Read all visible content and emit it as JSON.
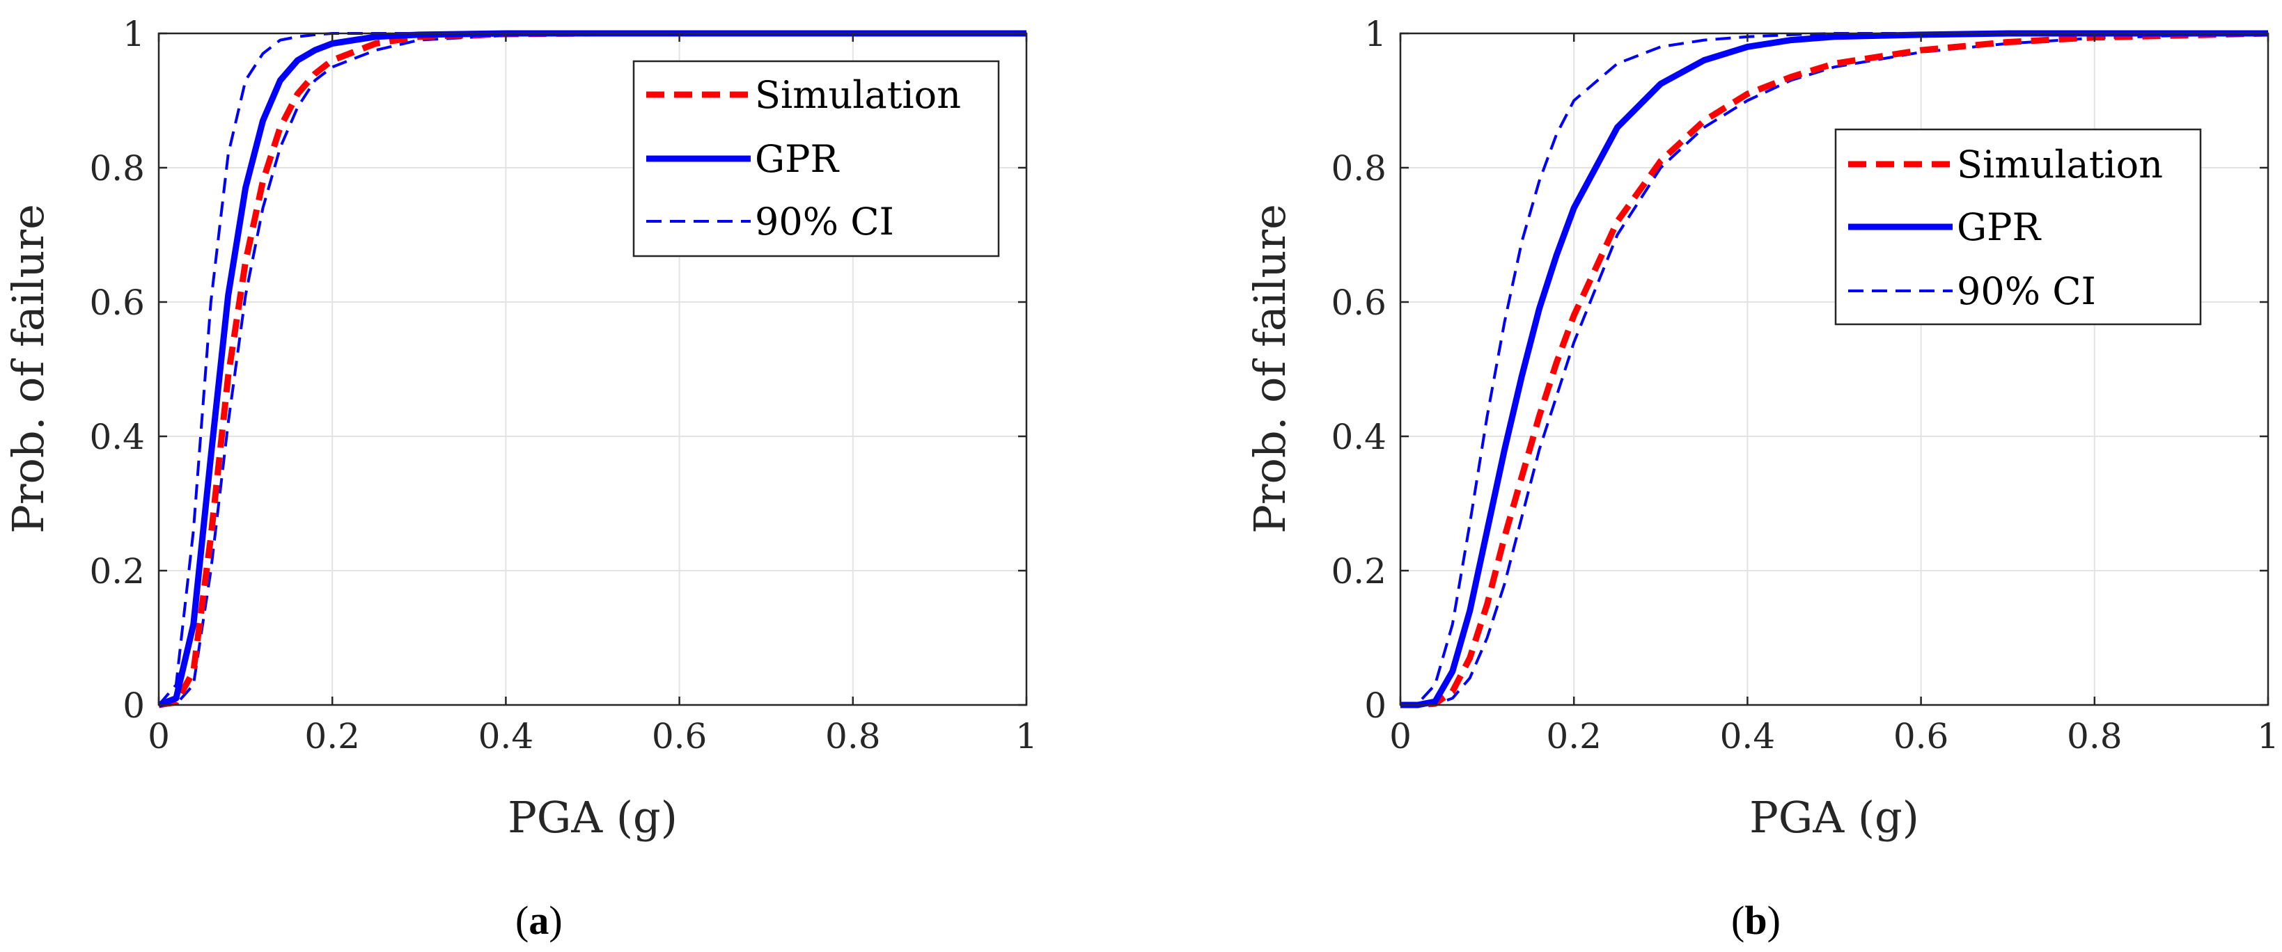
{
  "colors": {
    "simulation": "#ff0000",
    "gpr": "#0000ff",
    "ci": "#0000ff",
    "grid": "#e3e3e3",
    "axis": "#262626"
  },
  "chart_data": [
    {
      "type": "line",
      "panel_label": "a",
      "xlabel": "PGA (g)",
      "ylabel": "Prob. of failure",
      "xlim": [
        0,
        1
      ],
      "ylim": [
        0,
        1
      ],
      "xticks": [
        0,
        0.2,
        0.4,
        0.6,
        0.8,
        1
      ],
      "xtick_labels": [
        "0",
        "0.2",
        "0.4",
        "0.6",
        "0.8",
        "1"
      ],
      "yticks": [
        0,
        0.2,
        0.4,
        0.6,
        0.8,
        1
      ],
      "ytick_labels": [
        "0",
        "0.2",
        "0.4",
        "0.6",
        "0.8",
        "1"
      ],
      "grid": true,
      "legend_position": "top-right",
      "legend": [
        "Simulation",
        "GPR",
        "90% CI"
      ],
      "x": [
        0,
        0.02,
        0.04,
        0.06,
        0.08,
        0.1,
        0.12,
        0.14,
        0.16,
        0.18,
        0.2,
        0.25,
        0.3,
        0.4,
        0.5,
        0.6,
        0.7,
        0.8,
        0.9,
        1.0
      ],
      "series": [
        {
          "name": "Simulation",
          "style": "dashed-thick",
          "values": [
            0,
            0.004,
            0.05,
            0.25,
            0.49,
            0.66,
            0.78,
            0.86,
            0.91,
            0.94,
            0.96,
            0.985,
            0.995,
            0.999,
            1,
            1,
            1,
            1,
            1,
            1
          ]
        },
        {
          "name": "GPR",
          "style": "solid-thick",
          "values": [
            0,
            0.01,
            0.12,
            0.37,
            0.61,
            0.77,
            0.87,
            0.93,
            0.96,
            0.975,
            0.985,
            0.995,
            0.998,
            1,
            1,
            1,
            1,
            1,
            1,
            1
          ]
        },
        {
          "name": "90% CI upper",
          "style": "dashed-thin",
          "values": [
            0,
            0.03,
            0.26,
            0.6,
            0.82,
            0.93,
            0.97,
            0.99,
            0.995,
            0.998,
            1,
            1,
            1,
            1,
            1,
            1,
            1,
            1,
            1,
            1
          ]
        },
        {
          "name": "90% CI lower",
          "style": "dashed-thin",
          "values": [
            0,
            0.001,
            0.03,
            0.2,
            0.42,
            0.61,
            0.74,
            0.83,
            0.89,
            0.93,
            0.95,
            0.975,
            0.99,
            0.997,
            1,
            1,
            1,
            1,
            1,
            1
          ]
        }
      ]
    },
    {
      "type": "line",
      "panel_label": "b",
      "xlabel": "PGA (g)",
      "ylabel": "Prob. of failure",
      "xlim": [
        0,
        1
      ],
      "ylim": [
        0,
        1
      ],
      "xticks": [
        0,
        0.2,
        0.4,
        0.6,
        0.8,
        1
      ],
      "xtick_labels": [
        "0",
        "0.2",
        "0.4",
        "0.6",
        "0.8",
        "1"
      ],
      "yticks": [
        0,
        0.2,
        0.4,
        0.6,
        0.8,
        1
      ],
      "ytick_labels": [
        "0",
        "0.2",
        "0.4",
        "0.6",
        "0.8",
        "1"
      ],
      "grid": true,
      "legend_position": "top-right",
      "legend": [
        "Simulation",
        "GPR",
        "90% CI"
      ],
      "x": [
        0,
        0.02,
        0.04,
        0.06,
        0.08,
        0.1,
        0.12,
        0.14,
        0.16,
        0.18,
        0.2,
        0.25,
        0.3,
        0.35,
        0.4,
        0.45,
        0.5,
        0.6,
        0.7,
        0.8,
        0.9,
        1.0
      ],
      "series": [
        {
          "name": "Simulation",
          "style": "dashed-thick",
          "values": [
            0,
            0,
            0.002,
            0.02,
            0.07,
            0.15,
            0.25,
            0.34,
            0.43,
            0.51,
            0.58,
            0.72,
            0.81,
            0.87,
            0.91,
            0.935,
            0.955,
            0.975,
            0.987,
            0.994,
            0.997,
            1
          ]
        },
        {
          "name": "GPR",
          "style": "solid-thick",
          "values": [
            0,
            0,
            0.005,
            0.05,
            0.14,
            0.26,
            0.38,
            0.49,
            0.59,
            0.67,
            0.74,
            0.86,
            0.925,
            0.96,
            0.98,
            0.99,
            0.995,
            0.998,
            1,
            1,
            1,
            1
          ]
        },
        {
          "name": "90% CI upper",
          "style": "dashed-thin",
          "values": [
            0,
            0.002,
            0.03,
            0.12,
            0.27,
            0.43,
            0.57,
            0.69,
            0.78,
            0.85,
            0.9,
            0.955,
            0.98,
            0.99,
            0.995,
            0.998,
            1,
            1,
            1,
            1,
            1,
            1
          ]
        },
        {
          "name": "90% CI lower",
          "style": "dashed-thin",
          "values": [
            0,
            0,
            0.001,
            0.01,
            0.04,
            0.1,
            0.18,
            0.28,
            0.38,
            0.46,
            0.54,
            0.7,
            0.8,
            0.86,
            0.9,
            0.93,
            0.95,
            0.972,
            0.985,
            0.993,
            0.997,
            1
          ]
        }
      ]
    }
  ]
}
